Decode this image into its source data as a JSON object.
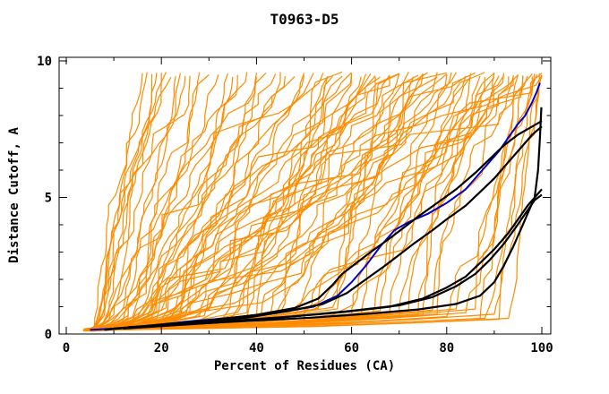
{
  "chart_data": {
    "type": "line",
    "title": "T0963-D5",
    "xlabel": "Percent of Residues (CA)",
    "ylabel": "Distance Cutoff, A",
    "xlim": [
      0,
      100
    ],
    "ylim": [
      0,
      10
    ],
    "x_ticks_major": [
      0,
      20,
      40,
      60,
      80,
      100
    ],
    "x_ticks_minor": [
      10,
      30,
      50,
      70,
      90
    ],
    "y_ticks_major": [
      0,
      5,
      10
    ],
    "y_ticks_minor": [
      1,
      2,
      3,
      4,
      6,
      7,
      8,
      9
    ],
    "grid": false,
    "legend": null,
    "colors": {
      "server_models": "#FF8C00",
      "best_models": "#000000",
      "reference_model": "#0000CC",
      "frame": "#000000",
      "text": "#000000",
      "background": "#FFFFFF"
    },
    "series": {
      "reference_model": {
        "color": "#0000CC",
        "points": [
          [
            5,
            0.15
          ],
          [
            15,
            0.25
          ],
          [
            25,
            0.45
          ],
          [
            35,
            0.6
          ],
          [
            45,
            0.8
          ],
          [
            52,
            1.0
          ],
          [
            57,
            1.4
          ],
          [
            60,
            1.9
          ],
          [
            63,
            2.5
          ],
          [
            66,
            3.2
          ],
          [
            69,
            3.8
          ],
          [
            72,
            4.1
          ],
          [
            76,
            4.4
          ],
          [
            80,
            4.8
          ],
          [
            84,
            5.3
          ],
          [
            87,
            5.9
          ],
          [
            89,
            6.3
          ],
          [
            91,
            6.7
          ],
          [
            93,
            7.2
          ],
          [
            95,
            7.7
          ],
          [
            96.5,
            8.0
          ],
          [
            98,
            8.5
          ],
          [
            99,
            8.9
          ],
          [
            99.6,
            9.2
          ]
        ]
      },
      "best_models": {
        "color": "#000000",
        "curves": [
          [
            [
              8,
              0.15
            ],
            [
              20,
              0.35
            ],
            [
              30,
              0.5
            ],
            [
              40,
              0.7
            ],
            [
              48,
              0.95
            ],
            [
              53,
              1.3
            ],
            [
              56,
              1.8
            ],
            [
              58,
              2.2
            ],
            [
              61,
              2.6
            ],
            [
              64,
              3.0
            ],
            [
              68,
              3.5
            ],
            [
              71,
              3.9
            ],
            [
              74,
              4.3
            ],
            [
              78,
              4.8
            ],
            [
              82,
              5.3
            ],
            [
              86,
              5.9
            ],
            [
              89,
              6.4
            ],
            [
              92,
              6.9
            ],
            [
              95,
              7.3
            ],
            [
              98,
              7.6
            ],
            [
              100,
              7.8
            ]
          ],
          [
            [
              10,
              0.2
            ],
            [
              25,
              0.4
            ],
            [
              38,
              0.6
            ],
            [
              47,
              0.85
            ],
            [
              54,
              1.1
            ],
            [
              59,
              1.5
            ],
            [
              63,
              2.0
            ],
            [
              67,
              2.5
            ],
            [
              70,
              2.9
            ],
            [
              73,
              3.3
            ],
            [
              77,
              3.8
            ],
            [
              80,
              4.2
            ],
            [
              84,
              4.7
            ],
            [
              87,
              5.2
            ],
            [
              90,
              5.7
            ],
            [
              93,
              6.3
            ],
            [
              96,
              6.9
            ],
            [
              98,
              7.3
            ],
            [
              100,
              7.6
            ]
          ],
          [
            [
              12,
              0.2
            ],
            [
              30,
              0.4
            ],
            [
              45,
              0.6
            ],
            [
              58,
              0.8
            ],
            [
              68,
              1.0
            ],
            [
              75,
              1.3
            ],
            [
              80,
              1.7
            ],
            [
              84,
              2.1
            ],
            [
              87,
              2.6
            ],
            [
              90,
              3.1
            ],
            [
              93,
              3.7
            ],
            [
              95,
              4.2
            ],
            [
              97,
              4.7
            ],
            [
              99,
              5.1
            ],
            [
              100,
              5.3
            ]
          ],
          [
            [
              13,
              0.25
            ],
            [
              32,
              0.45
            ],
            [
              48,
              0.65
            ],
            [
              60,
              0.85
            ],
            [
              70,
              1.05
            ],
            [
              77,
              1.35
            ],
            [
              82,
              1.75
            ],
            [
              86,
              2.2
            ],
            [
              89,
              2.7
            ],
            [
              92,
              3.3
            ],
            [
              94.5,
              3.9
            ],
            [
              96.5,
              4.4
            ],
            [
              98.5,
              4.9
            ],
            [
              100,
              5.1
            ]
          ],
          [
            [
              14,
              0.25
            ],
            [
              35,
              0.45
            ],
            [
              52,
              0.6
            ],
            [
              64,
              0.75
            ],
            [
              74,
              0.9
            ],
            [
              82,
              1.1
            ],
            [
              87,
              1.4
            ],
            [
              90,
              1.9
            ],
            [
              92,
              2.5
            ],
            [
              94,
              3.2
            ],
            [
              96,
              4.0
            ],
            [
              97.5,
              4.6
            ],
            [
              98.5,
              5.0
            ],
            [
              99.2,
              6.0
            ],
            [
              99.6,
              7.2
            ],
            [
              99.9,
              8.3
            ]
          ]
        ]
      },
      "server_models": {
        "color": "#FF8C00",
        "params_format": [
          "x_top_percent",
          "x_knee_percent",
          "seed"
        ],
        "params": [
          [
            16,
            7,
            1
          ],
          [
            18,
            8,
            2
          ],
          [
            20,
            9,
            3
          ],
          [
            22,
            8,
            4
          ],
          [
            24,
            10,
            5
          ],
          [
            26,
            9,
            6
          ],
          [
            28,
            11,
            7
          ],
          [
            30,
            10,
            8
          ],
          [
            32,
            12,
            9
          ],
          [
            34,
            11,
            10
          ],
          [
            36,
            13,
            11
          ],
          [
            38,
            12,
            12
          ],
          [
            40,
            14,
            13
          ],
          [
            42,
            13,
            14
          ],
          [
            44,
            15,
            15
          ],
          [
            46,
            14,
            16
          ],
          [
            48,
            16,
            17
          ],
          [
            50,
            15,
            18
          ],
          [
            52,
            17,
            19
          ],
          [
            54,
            16,
            20
          ],
          [
            56,
            18,
            21
          ],
          [
            58,
            17,
            22
          ],
          [
            60,
            19,
            23
          ],
          [
            62,
            18,
            24
          ],
          [
            64,
            20,
            25
          ],
          [
            66,
            19,
            26
          ],
          [
            68,
            21,
            27
          ],
          [
            70,
            20,
            28
          ],
          [
            72,
            22,
            29
          ],
          [
            74,
            21,
            30
          ],
          [
            76,
            23,
            31
          ],
          [
            78,
            22,
            32
          ],
          [
            80,
            24,
            33
          ],
          [
            82,
            23,
            34
          ],
          [
            84,
            25,
            35
          ],
          [
            86,
            24,
            36
          ],
          [
            88,
            26,
            37
          ],
          [
            90,
            25,
            38
          ],
          [
            92,
            27,
            39
          ],
          [
            94,
            26,
            40
          ],
          [
            96,
            28,
            41
          ],
          [
            98,
            27,
            42
          ],
          [
            100,
            29,
            43
          ],
          [
            35,
            18,
            44
          ],
          [
            40,
            22,
            45
          ],
          [
            45,
            25,
            46
          ],
          [
            50,
            28,
            47
          ],
          [
            55,
            30,
            48
          ],
          [
            60,
            33,
            49
          ],
          [
            65,
            36,
            50
          ],
          [
            70,
            38,
            51
          ],
          [
            75,
            41,
            52
          ],
          [
            80,
            44,
            53
          ],
          [
            85,
            47,
            54
          ],
          [
            90,
            50,
            55
          ],
          [
            95,
            53,
            56
          ],
          [
            100,
            56,
            57
          ],
          [
            55,
            38,
            58
          ],
          [
            60,
            43,
            59
          ],
          [
            65,
            48,
            60
          ],
          [
            70,
            52,
            61
          ],
          [
            75,
            57,
            62
          ],
          [
            80,
            62,
            63
          ],
          [
            85,
            66,
            64
          ],
          [
            88,
            70,
            65
          ],
          [
            91,
            74,
            66
          ],
          [
            93,
            77,
            67
          ],
          [
            95,
            80,
            68
          ],
          [
            97,
            84,
            69
          ],
          [
            98,
            86,
            70
          ],
          [
            99,
            88,
            71
          ],
          [
            100,
            90,
            72
          ],
          [
            100,
            93,
            73
          ],
          [
            99.5,
            91,
            74
          ],
          [
            98.5,
            87,
            75
          ],
          [
            96,
            82,
            76
          ],
          [
            94,
            78,
            77
          ],
          [
            92,
            75,
            78
          ],
          [
            90,
            72,
            79
          ],
          [
            87,
            68,
            80
          ],
          [
            84,
            64,
            81
          ],
          [
            81,
            60,
            82
          ],
          [
            78,
            56,
            83
          ],
          [
            73,
            50,
            84
          ],
          [
            68,
            45,
            85
          ],
          [
            63,
            40,
            86
          ],
          [
            58,
            35,
            87
          ],
          [
            17,
            6,
            88
          ],
          [
            19,
            7,
            89
          ],
          [
            21,
            7,
            90
          ],
          [
            23,
            9,
            91
          ],
          [
            25,
            8,
            92
          ]
        ]
      }
    }
  }
}
